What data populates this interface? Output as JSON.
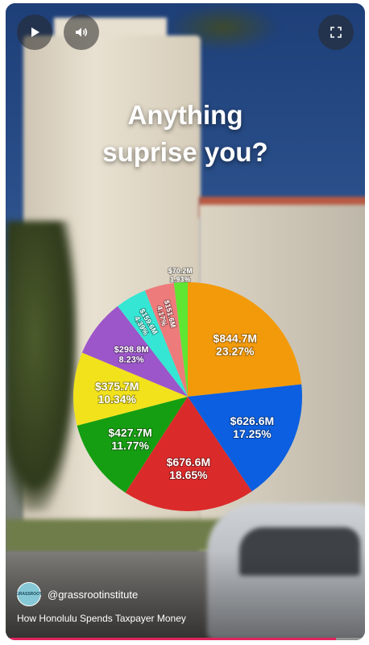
{
  "controls": {
    "play_icon": "play-icon",
    "volume_icon": "volume-icon",
    "fullscreen_icon": "fullscreen-icon"
  },
  "headline": {
    "line1": "Anything",
    "line2": "suprise you?"
  },
  "chart_data": {
    "type": "pie",
    "title": "",
    "slices": [
      {
        "label": "$844.7M",
        "value": 23.27,
        "pct_label": "23.27%",
        "color": "#F39A0B"
      },
      {
        "label": "$626.6M",
        "value": 17.25,
        "pct_label": "17.25%",
        "color": "#0B5FE0"
      },
      {
        "label": "$676.6M",
        "value": 18.65,
        "pct_label": "18.65%",
        "color": "#DB2A2A"
      },
      {
        "label": "$427.7M",
        "value": 11.77,
        "pct_label": "11.77%",
        "color": "#169E12"
      },
      {
        "label": "$375.7M",
        "value": 10.34,
        "pct_label": "10.34%",
        "color": "#F2E21C"
      },
      {
        "label": "$298.8M",
        "value": 8.23,
        "pct_label": "8.23%",
        "color": "#9C56C9"
      },
      {
        "label": "$159.6M",
        "value": 4.39,
        "pct_label": "4.39%",
        "color": "#35E6D4"
      },
      {
        "label": "$151.6M",
        "value": 4.17,
        "pct_label": "4.17%",
        "color": "#EE7B7B"
      },
      {
        "label": "$70.2M",
        "value": 1.93,
        "pct_label": "1.93%",
        "color": "#5EE633"
      }
    ]
  },
  "channel": {
    "avatar_text": "GRASSROOT",
    "handle": "@grassrootinstitute"
  },
  "video_title": "How Honolulu Spends Taxpayer Money",
  "progress": 0.92
}
